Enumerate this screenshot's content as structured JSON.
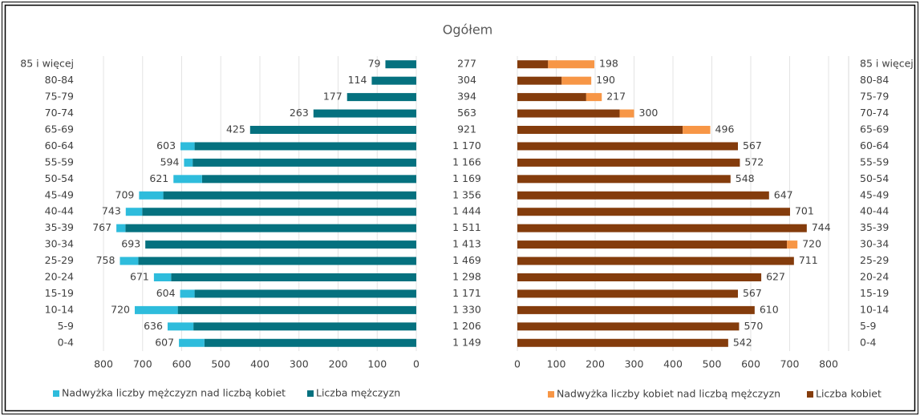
{
  "chart_data": {
    "type": "bar",
    "title": "Ogółem",
    "categories": [
      "0-4",
      "5-9",
      "10-14",
      "15-19",
      "20-24",
      "25-29",
      "30-34",
      "35-39",
      "40-44",
      "45-49",
      "50-54",
      "55-59",
      "60-64",
      "65-69",
      "70-74",
      "75-79",
      "80-84",
      "85 i więcej"
    ],
    "series": [
      {
        "name": "Liczba mężczyzn",
        "color": "#05717f",
        "side": "left",
        "values": [
          542,
          570,
          610,
          567,
          627,
          711,
          693,
          744,
          701,
          647,
          548,
          572,
          567,
          425,
          263,
          177,
          114,
          79
        ]
      },
      {
        "name": "Nadwyżka liczby mężczyzn nad liczbą kobiet",
        "color": "#2ebcdc",
        "side": "left",
        "values": [
          65,
          66,
          110,
          37,
          44,
          47,
          0,
          23,
          42,
          62,
          73,
          22,
          36,
          0,
          0,
          0,
          0,
          0
        ]
      },
      {
        "name": "Liczba kobiet",
        "color": "#843c0c",
        "side": "right",
        "values": [
          542,
          570,
          610,
          567,
          627,
          711,
          693,
          744,
          701,
          647,
          548,
          572,
          567,
          425,
          263,
          177,
          114,
          79
        ]
      },
      {
        "name": "Nadwyżka liczby kobiet nad liczbą mężczyzn",
        "color": "#f79646",
        "side": "right",
        "values": [
          0,
          0,
          0,
          0,
          0,
          0,
          27,
          0,
          0,
          0,
          0,
          0,
          0,
          71,
          37,
          40,
          76,
          119
        ]
      }
    ],
    "left_totals": [
      607,
      636,
      720,
      604,
      671,
      758,
      693,
      767,
      743,
      709,
      621,
      594,
      603,
      425,
      263,
      177,
      114,
      79
    ],
    "right_totals": [
      542,
      570,
      610,
      567,
      627,
      711,
      720,
      744,
      701,
      647,
      548,
      572,
      567,
      496,
      300,
      217,
      190,
      198
    ],
    "totals": [
      {
        "value": 1149,
        "label": "1 149"
      },
      {
        "value": 1206,
        "label": "1 206"
      },
      {
        "value": 1330,
        "label": "1 330"
      },
      {
        "value": 1171,
        "label": "1 171"
      },
      {
        "value": 1298,
        "label": "1 298"
      },
      {
        "value": 1469,
        "label": "1 469"
      },
      {
        "value": 1413,
        "label": "1 413"
      },
      {
        "value": 1511,
        "label": "1 511"
      },
      {
        "value": 1444,
        "label": "1 444"
      },
      {
        "value": 1356,
        "label": "1 356"
      },
      {
        "value": 1169,
        "label": "1 169"
      },
      {
        "value": 1166,
        "label": "1 166"
      },
      {
        "value": 1170,
        "label": "1 170"
      },
      921,
      563,
      394,
      304,
      277
    ],
    "xlim": [
      0,
      800
    ],
    "xticks": [
      0,
      100,
      200,
      300,
      400,
      500,
      600,
      700,
      800
    ],
    "grid": true
  }
}
